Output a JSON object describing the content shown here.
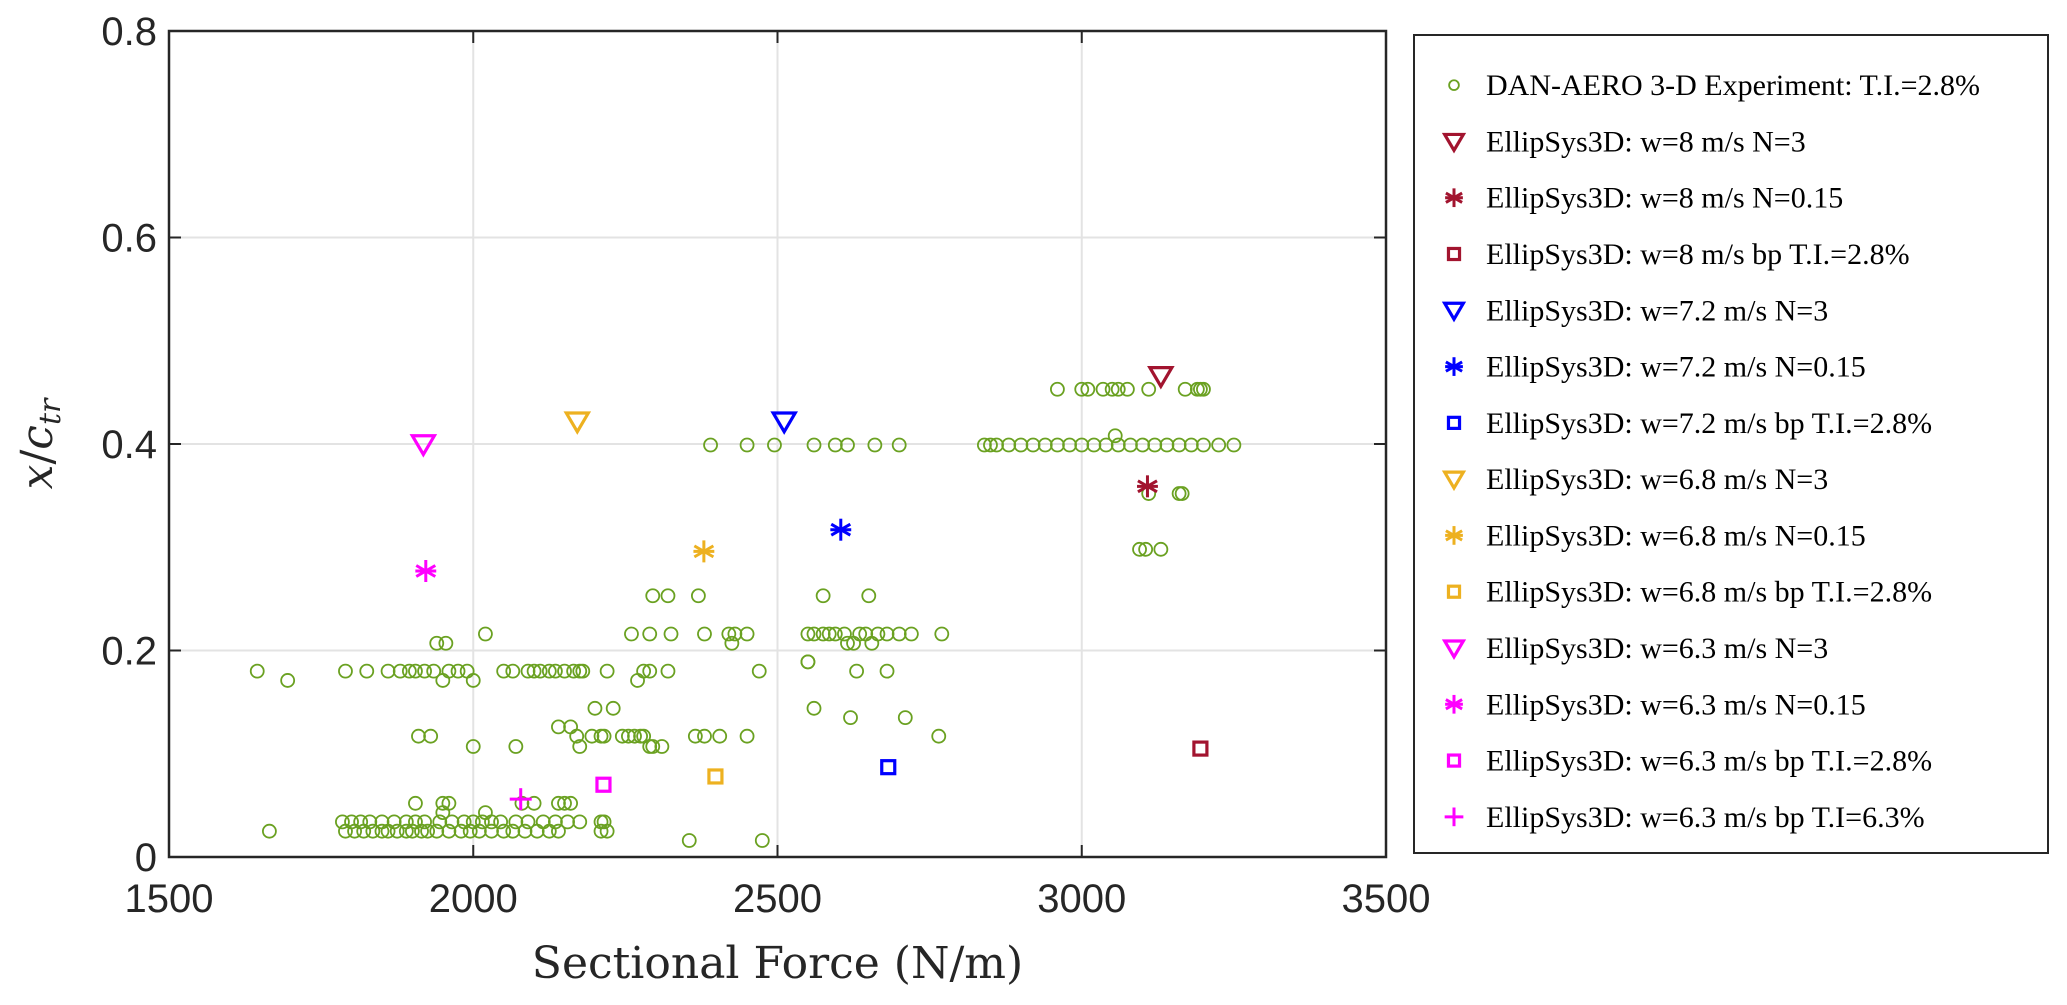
{
  "chart_data": {
    "type": "scatter",
    "title": "",
    "xlabel": "Sectional Force (N/m)",
    "ylabel": "x / c_tr",
    "ylabel_main": "x",
    "ylabel_sub_var": "c",
    "ylabel_subscript": "tr",
    "xlim": [
      1500,
      3500
    ],
    "ylim": [
      0,
      0.8
    ],
    "xticks": [
      1500,
      2000,
      2500,
      3000,
      3500
    ],
    "xtick_labels": [
      "1500",
      "2000",
      "2500",
      "3000",
      "3500"
    ],
    "yticks": [
      0,
      0.2,
      0.4,
      0.6,
      0.8
    ],
    "ytick_labels": [
      "0",
      "0.2",
      "0.4",
      "0.6",
      "0.8"
    ],
    "grid": true,
    "legend_position": "outside-right",
    "series": [
      {
        "name": "DAN-AERO 3-D Experiment:  T.I.=2.8%",
        "marker": "circle",
        "color": "#6aa121",
        "points": [
          [
            1645,
            0.18
          ],
          [
            1695,
            0.171
          ],
          [
            1665,
            0.025
          ],
          [
            1790,
            0.18
          ],
          [
            1825,
            0.18
          ],
          [
            1860,
            0.18
          ],
          [
            1880,
            0.18
          ],
          [
            1895,
            0.18
          ],
          [
            1905,
            0.18
          ],
          [
            1920,
            0.18
          ],
          [
            1935,
            0.18
          ],
          [
            1950,
            0.171
          ],
          [
            1960,
            0.18
          ],
          [
            1975,
            0.18
          ],
          [
            1990,
            0.18
          ],
          [
            2000,
            0.171
          ],
          [
            1940,
            0.207
          ],
          [
            1955,
            0.207
          ],
          [
            2020,
            0.216
          ],
          [
            1910,
            0.117
          ],
          [
            1930,
            0.117
          ],
          [
            2000,
            0.107
          ],
          [
            2070,
            0.107
          ],
          [
            2050,
            0.18
          ],
          [
            2065,
            0.18
          ],
          [
            2090,
            0.18
          ],
          [
            2100,
            0.18
          ],
          [
            2110,
            0.18
          ],
          [
            2125,
            0.18
          ],
          [
            2135,
            0.18
          ],
          [
            2150,
            0.18
          ],
          [
            2165,
            0.18
          ],
          [
            2175,
            0.18
          ],
          [
            2180,
            0.18
          ],
          [
            2220,
            0.18
          ],
          [
            2270,
            0.171
          ],
          [
            2280,
            0.18
          ],
          [
            2290,
            0.18
          ],
          [
            2320,
            0.18
          ],
          [
            2470,
            0.18
          ],
          [
            2550,
            0.189
          ],
          [
            2550,
            0.189
          ],
          [
            2630,
            0.18
          ],
          [
            2680,
            0.18
          ],
          [
            2140,
            0.126
          ],
          [
            2160,
            0.126
          ],
          [
            2170,
            0.117
          ],
          [
            2175,
            0.107
          ],
          [
            2195,
            0.117
          ],
          [
            2200,
            0.144
          ],
          [
            2210,
            0.117
          ],
          [
            2215,
            0.117
          ],
          [
            2230,
            0.144
          ],
          [
            2245,
            0.117
          ],
          [
            2255,
            0.117
          ],
          [
            2265,
            0.117
          ],
          [
            2275,
            0.117
          ],
          [
            2280,
            0.117
          ],
          [
            2290,
            0.107
          ],
          [
            2295,
            0.107
          ],
          [
            2310,
            0.107
          ],
          [
            2365,
            0.117
          ],
          [
            2380,
            0.117
          ],
          [
            2405,
            0.117
          ],
          [
            2450,
            0.117
          ],
          [
            2560,
            0.144
          ],
          [
            2620,
            0.135
          ],
          [
            2710,
            0.135
          ],
          [
            2765,
            0.117
          ],
          [
            2260,
            0.216
          ],
          [
            2290,
            0.216
          ],
          [
            2325,
            0.216
          ],
          [
            2295,
            0.253
          ],
          [
            2320,
            0.253
          ],
          [
            2370,
            0.253
          ],
          [
            2380,
            0.216
          ],
          [
            2420,
            0.216
          ],
          [
            2425,
            0.207
          ],
          [
            2430,
            0.216
          ],
          [
            2450,
            0.216
          ],
          [
            2550,
            0.216
          ],
          [
            2560,
            0.216
          ],
          [
            2575,
            0.216
          ],
          [
            2585,
            0.216
          ],
          [
            2595,
            0.216
          ],
          [
            2610,
            0.216
          ],
          [
            2615,
            0.207
          ],
          [
            2625,
            0.207
          ],
          [
            2635,
            0.216
          ],
          [
            2645,
            0.216
          ],
          [
            2655,
            0.207
          ],
          [
            2665,
            0.216
          ],
          [
            2680,
            0.216
          ],
          [
            2700,
            0.216
          ],
          [
            2720,
            0.216
          ],
          [
            2770,
            0.216
          ],
          [
            2575,
            0.253
          ],
          [
            2650,
            0.253
          ],
          [
            2390,
            0.399
          ],
          [
            2450,
            0.399
          ],
          [
            2495,
            0.399
          ],
          [
            2560,
            0.399
          ],
          [
            2595,
            0.399
          ],
          [
            2615,
            0.399
          ],
          [
            2660,
            0.399
          ],
          [
            2700,
            0.399
          ],
          [
            2840,
            0.399
          ],
          [
            2850,
            0.399
          ],
          [
            2860,
            0.399
          ],
          [
            2880,
            0.399
          ],
          [
            2900,
            0.399
          ],
          [
            2920,
            0.399
          ],
          [
            2940,
            0.399
          ],
          [
            2960,
            0.399
          ],
          [
            2980,
            0.399
          ],
          [
            3000,
            0.399
          ],
          [
            3020,
            0.399
          ],
          [
            3040,
            0.399
          ],
          [
            3060,
            0.399
          ],
          [
            3080,
            0.399
          ],
          [
            3100,
            0.399
          ],
          [
            3120,
            0.399
          ],
          [
            3140,
            0.399
          ],
          [
            3160,
            0.399
          ],
          [
            3180,
            0.399
          ],
          [
            3200,
            0.399
          ],
          [
            3225,
            0.399
          ],
          [
            3250,
            0.399
          ],
          [
            3055,
            0.408
          ],
          [
            2960,
            0.453
          ],
          [
            3000,
            0.453
          ],
          [
            3010,
            0.453
          ],
          [
            3035,
            0.453
          ],
          [
            3050,
            0.453
          ],
          [
            3060,
            0.453
          ],
          [
            3075,
            0.453
          ],
          [
            3110,
            0.453
          ],
          [
            3170,
            0.453
          ],
          [
            3190,
            0.453
          ],
          [
            3195,
            0.453
          ],
          [
            3200,
            0.453
          ],
          [
            3110,
            0.352
          ],
          [
            3160,
            0.352
          ],
          [
            3165,
            0.352
          ],
          [
            3095,
            0.298
          ],
          [
            3105,
            0.298
          ],
          [
            3130,
            0.298
          ],
          [
            1785,
            0.034
          ],
          [
            1800,
            0.034
          ],
          [
            1815,
            0.034
          ],
          [
            1830,
            0.034
          ],
          [
            1850,
            0.034
          ],
          [
            1870,
            0.034
          ],
          [
            1890,
            0.034
          ],
          [
            1905,
            0.034
          ],
          [
            1920,
            0.034
          ],
          [
            1945,
            0.034
          ],
          [
            1965,
            0.034
          ],
          [
            1985,
            0.034
          ],
          [
            2000,
            0.034
          ],
          [
            2015,
            0.034
          ],
          [
            2030,
            0.034
          ],
          [
            2045,
            0.034
          ],
          [
            2070,
            0.034
          ],
          [
            2090,
            0.034
          ],
          [
            2115,
            0.034
          ],
          [
            2135,
            0.034
          ],
          [
            2155,
            0.034
          ],
          [
            2175,
            0.034
          ],
          [
            2215,
            0.034
          ],
          [
            1790,
            0.025
          ],
          [
            1805,
            0.025
          ],
          [
            1820,
            0.025
          ],
          [
            1835,
            0.025
          ],
          [
            1850,
            0.025
          ],
          [
            1860,
            0.025
          ],
          [
            1875,
            0.025
          ],
          [
            1890,
            0.025
          ],
          [
            1900,
            0.025
          ],
          [
            1915,
            0.025
          ],
          [
            1925,
            0.025
          ],
          [
            1940,
            0.025
          ],
          [
            1960,
            0.025
          ],
          [
            1980,
            0.025
          ],
          [
            1995,
            0.025
          ],
          [
            2010,
            0.025
          ],
          [
            2030,
            0.025
          ],
          [
            2050,
            0.025
          ],
          [
            2065,
            0.025
          ],
          [
            2085,
            0.025
          ],
          [
            2105,
            0.025
          ],
          [
            2125,
            0.025
          ],
          [
            2140,
            0.025
          ],
          [
            2210,
            0.025
          ],
          [
            2220,
            0.025
          ],
          [
            1905,
            0.052
          ],
          [
            1950,
            0.052
          ],
          [
            1960,
            0.052
          ],
          [
            2080,
            0.052
          ],
          [
            2100,
            0.052
          ],
          [
            2140,
            0.052
          ],
          [
            2150,
            0.052
          ],
          [
            2160,
            0.052
          ],
          [
            1950,
            0.043
          ],
          [
            2020,
            0.043
          ],
          [
            2210,
            0.034
          ],
          [
            2355,
            0.016
          ],
          [
            2475,
            0.016
          ]
        ]
      },
      {
        "name": "EllipSys3D: w=8 m/s N=3",
        "marker": "triangle-down",
        "color": "#a2142f",
        "points": [
          [
            3130,
            0.466
          ]
        ]
      },
      {
        "name": "EllipSys3D: w=8 m/s N=0.15",
        "marker": "asterisk",
        "color": "#a2142f",
        "points": [
          [
            3108,
            0.359
          ]
        ]
      },
      {
        "name": "EllipSys3D: w=8 m/s bp T.I.=2.8%",
        "marker": "square",
        "color": "#a2142f",
        "points": [
          [
            3195,
            0.105
          ]
        ]
      },
      {
        "name": "EllipSys3D: w=7.2 m/s N=3",
        "marker": "triangle-down",
        "color": "#0000ff",
        "points": [
          [
            2511,
            0.422
          ]
        ]
      },
      {
        "name": "EllipSys3D: w=7.2 m/s N=0.15",
        "marker": "asterisk",
        "color": "#0000ff",
        "points": [
          [
            2604,
            0.317
          ]
        ]
      },
      {
        "name": "EllipSys3D: w=7.2 m/s bp T.I.=2.8%",
        "marker": "square",
        "color": "#0000ff",
        "points": [
          [
            2682,
            0.087
          ]
        ]
      },
      {
        "name": "EllipSys3D: w=6.8 m/s N=3",
        "marker": "triangle-down",
        "color": "#edb120",
        "points": [
          [
            2171,
            0.422
          ]
        ]
      },
      {
        "name": "EllipSys3D: w=6.8 m/s N=0.15",
        "marker": "asterisk",
        "color": "#edb120",
        "points": [
          [
            2379,
            0.296
          ]
        ]
      },
      {
        "name": "EllipSys3D: w=6.8 m/s bp T.I.=2.8%",
        "marker": "square",
        "color": "#edb120",
        "points": [
          [
            2398,
            0.078
          ]
        ]
      },
      {
        "name": "EllipSys3D: w=6.3 m/s N=3",
        "marker": "triangle-down",
        "color": "#ff00ff",
        "points": [
          [
            1918,
            0.4
          ]
        ]
      },
      {
        "name": "EllipSys3D: w=6.3 m/s N=0.15",
        "marker": "asterisk",
        "color": "#ff00ff",
        "points": [
          [
            1922,
            0.277
          ]
        ]
      },
      {
        "name": "EllipSys3D: w=6.3 m/s bp T.I.=2.8%",
        "marker": "square",
        "color": "#ff00ff",
        "points": [
          [
            2214,
            0.07
          ]
        ]
      },
      {
        "name": "EllipSys3D: w=6.3 m/s bp T.I=6.3%",
        "marker": "plus",
        "color": "#ff00ff",
        "points": [
          [
            2078,
            0.056
          ]
        ]
      }
    ]
  }
}
